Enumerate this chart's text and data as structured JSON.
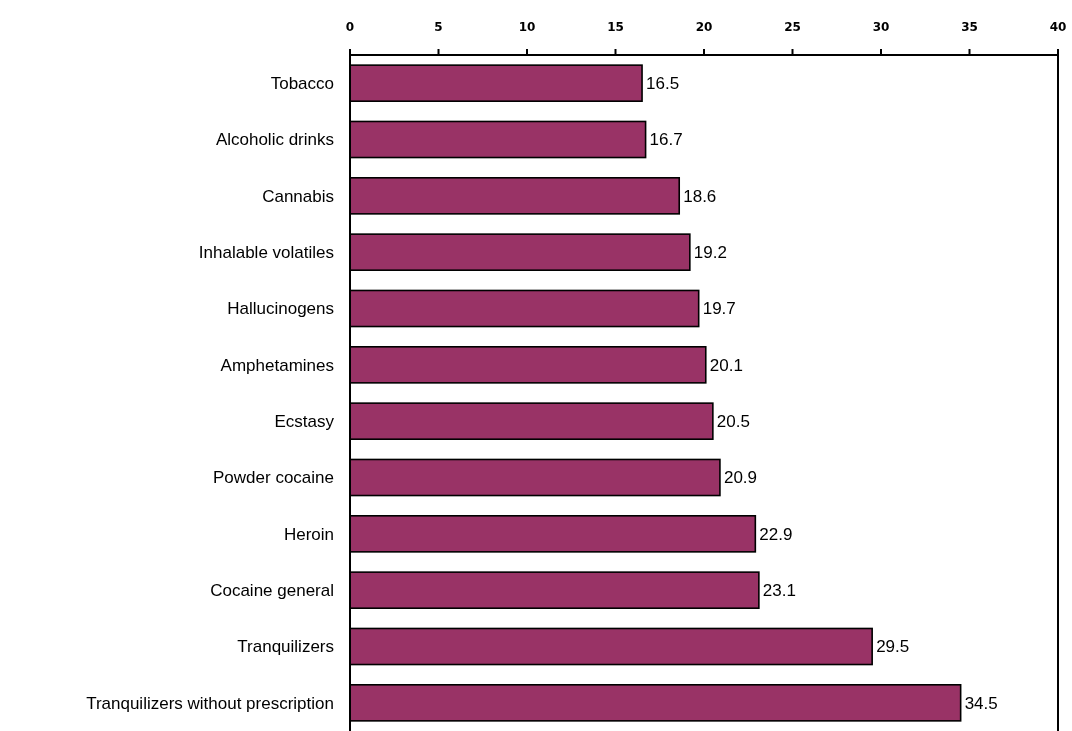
{
  "chart_data": {
    "type": "bar",
    "orientation": "horizontal",
    "categories": [
      "Tobacco",
      "Alcoholic drinks",
      "Cannabis",
      "Inhalable volatiles",
      "Hallucinogens",
      "Amphetamines",
      "Ecstasy",
      "Powder cocaine",
      "Heroin",
      "Cocaine general",
      "Tranquilizers",
      "Tranquilizers without prescription"
    ],
    "values": [
      16.5,
      16.7,
      18.6,
      19.2,
      19.7,
      20.1,
      20.5,
      20.9,
      22.9,
      23.1,
      29.5,
      34.5
    ],
    "color": "#993366",
    "xlim": [
      0,
      40
    ],
    "xticks": [
      0,
      5,
      10,
      15,
      20,
      25,
      30,
      35,
      40
    ],
    "data_labels": true
  }
}
